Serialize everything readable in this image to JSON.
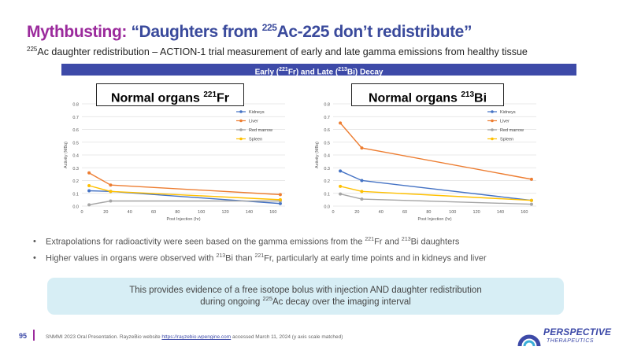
{
  "header": {
    "title_part1": "Mythbusting:",
    "title_part2a": " “Daughters from ",
    "title_sup": "225",
    "title_part2b": "Ac-225 don’t redistribute”",
    "subtitle_sup": "225",
    "subtitle_rest": "Ac daughter redistribution – ACTION-1 trial measurement of early and late gamma emissions from healthy tissue"
  },
  "banner": {
    "part1": "Early (",
    "sup1": "221",
    "part2": "Fr) and Late (",
    "sup2": "213",
    "part3": "Bi) Decay"
  },
  "bullets": [
    {
      "a": "Extrapolations for radioactivity were seen based on the gamma emissions from the ",
      "s1": "221",
      "b": "Fr and ",
      "s2": "213",
      "c": "Bi daughters"
    },
    {
      "a": "Higher values in organs were observed with ",
      "s1": "213",
      "b": "Bi than ",
      "s2": "221",
      "c": "Fr, particularly at early time points and in kidneys and liver"
    }
  ],
  "callout": {
    "line1": "This provides evidence of a free isotope bolus with injection AND daughter redistribution",
    "line2a": "during ongoing ",
    "line2_sup": "225",
    "line2b": "Ac decay over the imaging interval"
  },
  "footer": {
    "page": "95",
    "text_a": "SNMMI 2023 Oral Presentation. RayzeBio website ",
    "link": "https://rayzebio.wpengine.com",
    "text_b": " accessed March 11, 2024 (y axis scale matched)"
  },
  "logo": {
    "name": "PERSPECTIVE",
    "sub": "THERAPEUTICS"
  },
  "colors": {
    "kidneys": "#4472c4",
    "liver": "#ed7d31",
    "red_marrow": "#a5a5a5",
    "spleen": "#ffc000",
    "accent": "#9b2a9c",
    "brand": "#3d4aa8"
  },
  "chart_data": [
    {
      "type": "line",
      "title_main": "Normal organs ",
      "title_sup": "221",
      "title_tail": "Fr",
      "xlabel": "Post Injection (hr)",
      "ylabel": "Activity (MBq)",
      "xlim": [
        0,
        170
      ],
      "ylim": [
        0,
        0.8
      ],
      "xticks": [
        0,
        20,
        40,
        60,
        80,
        100,
        120,
        140,
        160
      ],
      "yticks": [
        0.0,
        0.1,
        0.2,
        0.3,
        0.4,
        0.5,
        0.6,
        0.7,
        0.8
      ],
      "grid": true,
      "legend": "top-right",
      "series": [
        {
          "name": "Kidneys",
          "color": "#4472c4",
          "x": [
            6,
            24,
            166
          ],
          "y": [
            0.12,
            0.115,
            0.02
          ]
        },
        {
          "name": "Liver",
          "color": "#ed7d31",
          "x": [
            6,
            24,
            166
          ],
          "y": [
            0.26,
            0.165,
            0.09
          ]
        },
        {
          "name": "Red marrow",
          "color": "#a5a5a5",
          "x": [
            6,
            24,
            166
          ],
          "y": [
            0.01,
            0.04,
            0.04
          ]
        },
        {
          "name": "Spleen",
          "color": "#ffc000",
          "x": [
            6,
            24,
            166
          ],
          "y": [
            0.16,
            0.115,
            0.05
          ]
        }
      ]
    },
    {
      "type": "line",
      "title_main": "Normal organs ",
      "title_sup": "213",
      "title_tail": "Bi",
      "xlabel": "Post Injection (hr)",
      "ylabel": "Activity (MBq)",
      "xlim": [
        0,
        170
      ],
      "ylim": [
        0,
        0.8
      ],
      "xticks": [
        0,
        20,
        40,
        60,
        80,
        100,
        120,
        140,
        160
      ],
      "yticks": [
        0.0,
        0.1,
        0.2,
        0.3,
        0.4,
        0.5,
        0.6,
        0.7,
        0.8
      ],
      "grid": true,
      "legend": "top-right",
      "series": [
        {
          "name": "Kidneys",
          "color": "#4472c4",
          "x": [
            6,
            24,
            166
          ],
          "y": [
            0.275,
            0.2,
            0.045
          ]
        },
        {
          "name": "Liver",
          "color": "#ed7d31",
          "x": [
            6,
            24,
            166
          ],
          "y": [
            0.65,
            0.455,
            0.21
          ]
        },
        {
          "name": "Red marrow",
          "color": "#a5a5a5",
          "x": [
            6,
            24,
            166
          ],
          "y": [
            0.095,
            0.055,
            0.015
          ]
        },
        {
          "name": "Spleen",
          "color": "#ffc000",
          "x": [
            6,
            24,
            166
          ],
          "y": [
            0.155,
            0.115,
            0.045
          ]
        }
      ]
    }
  ]
}
